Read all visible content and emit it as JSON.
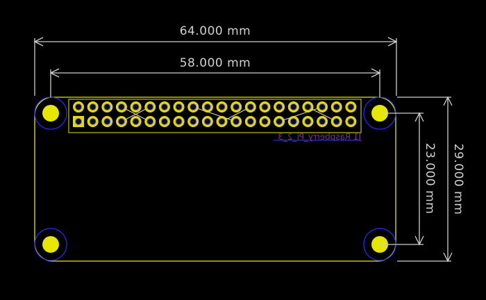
{
  "colors": {
    "background": "#000000",
    "board_outline": "#e6e600",
    "mounting_hole_pad": "#e6e600",
    "mounting_hole_ring": "#2b2bff",
    "header_pin": "#e6d900",
    "pin_drill": "#101010",
    "pin_ring": "#6b6bff",
    "silkscreen": "#e6e600",
    "traces": "#d8d8d8",
    "dimension": "#d0d0d0",
    "reference_label": "#7a2da8",
    "reference_underline": "#3030c0"
  },
  "dimensions": {
    "width_outer": "64.000 mm",
    "width_holes": "58.000 mm",
    "height_holes": "23.000 mm",
    "height_outer": "29.000 mm"
  },
  "board": {
    "reference_label": "J1 Raspberry_Pi_2_3",
    "header_rows": 2,
    "header_columns": 20
  }
}
